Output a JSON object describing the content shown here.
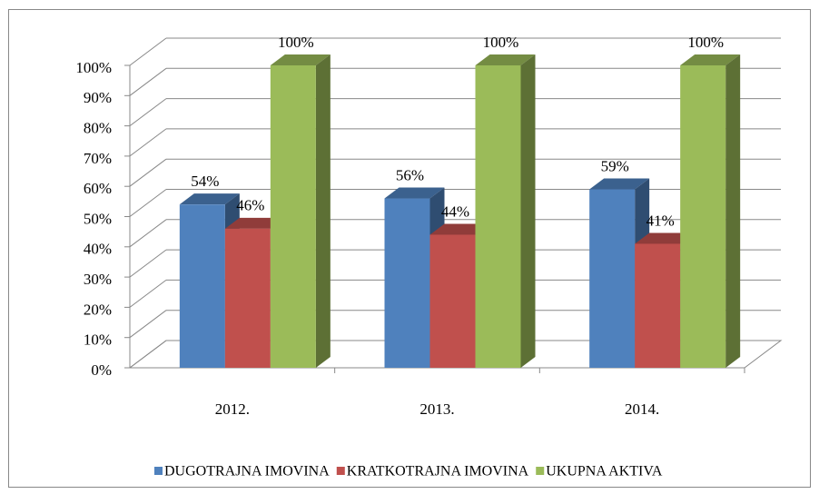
{
  "chart_data": {
    "type": "bar3d",
    "categories": [
      "2012.",
      "2013.",
      "2014."
    ],
    "series": [
      {
        "name": "DUGOTRAJNA IMOVINA",
        "color": "#4f81bd",
        "values": [
          54,
          56,
          59
        ],
        "value_labels": [
          "54%",
          "56%",
          "59%"
        ]
      },
      {
        "name": "KRATKOTRAJNA IMOVINA",
        "color": "#c0504d",
        "values": [
          46,
          44,
          41
        ],
        "value_labels": [
          "46%",
          "44%",
          "41%"
        ]
      },
      {
        "name": "UKUPNA AKTIVA",
        "color": "#9bbb59",
        "values": [
          100,
          100,
          100
        ],
        "value_labels": [
          "100%",
          "100%",
          "100%"
        ]
      }
    ],
    "ylim": [
      0,
      100
    ],
    "yticks": [
      {
        "value": 0,
        "label": "0%"
      },
      {
        "value": 10,
        "label": "10%"
      },
      {
        "value": 20,
        "label": "20%"
      },
      {
        "value": 30,
        "label": "30%"
      },
      {
        "value": 40,
        "label": "40%"
      },
      {
        "value": 50,
        "label": "50%"
      },
      {
        "value": 60,
        "label": "60%"
      },
      {
        "value": 70,
        "label": "70%"
      },
      {
        "value": 80,
        "label": "80%"
      },
      {
        "value": 90,
        "label": "90%"
      },
      {
        "value": 100,
        "label": "100%"
      }
    ],
    "grid": true,
    "legend": "bottom"
  }
}
